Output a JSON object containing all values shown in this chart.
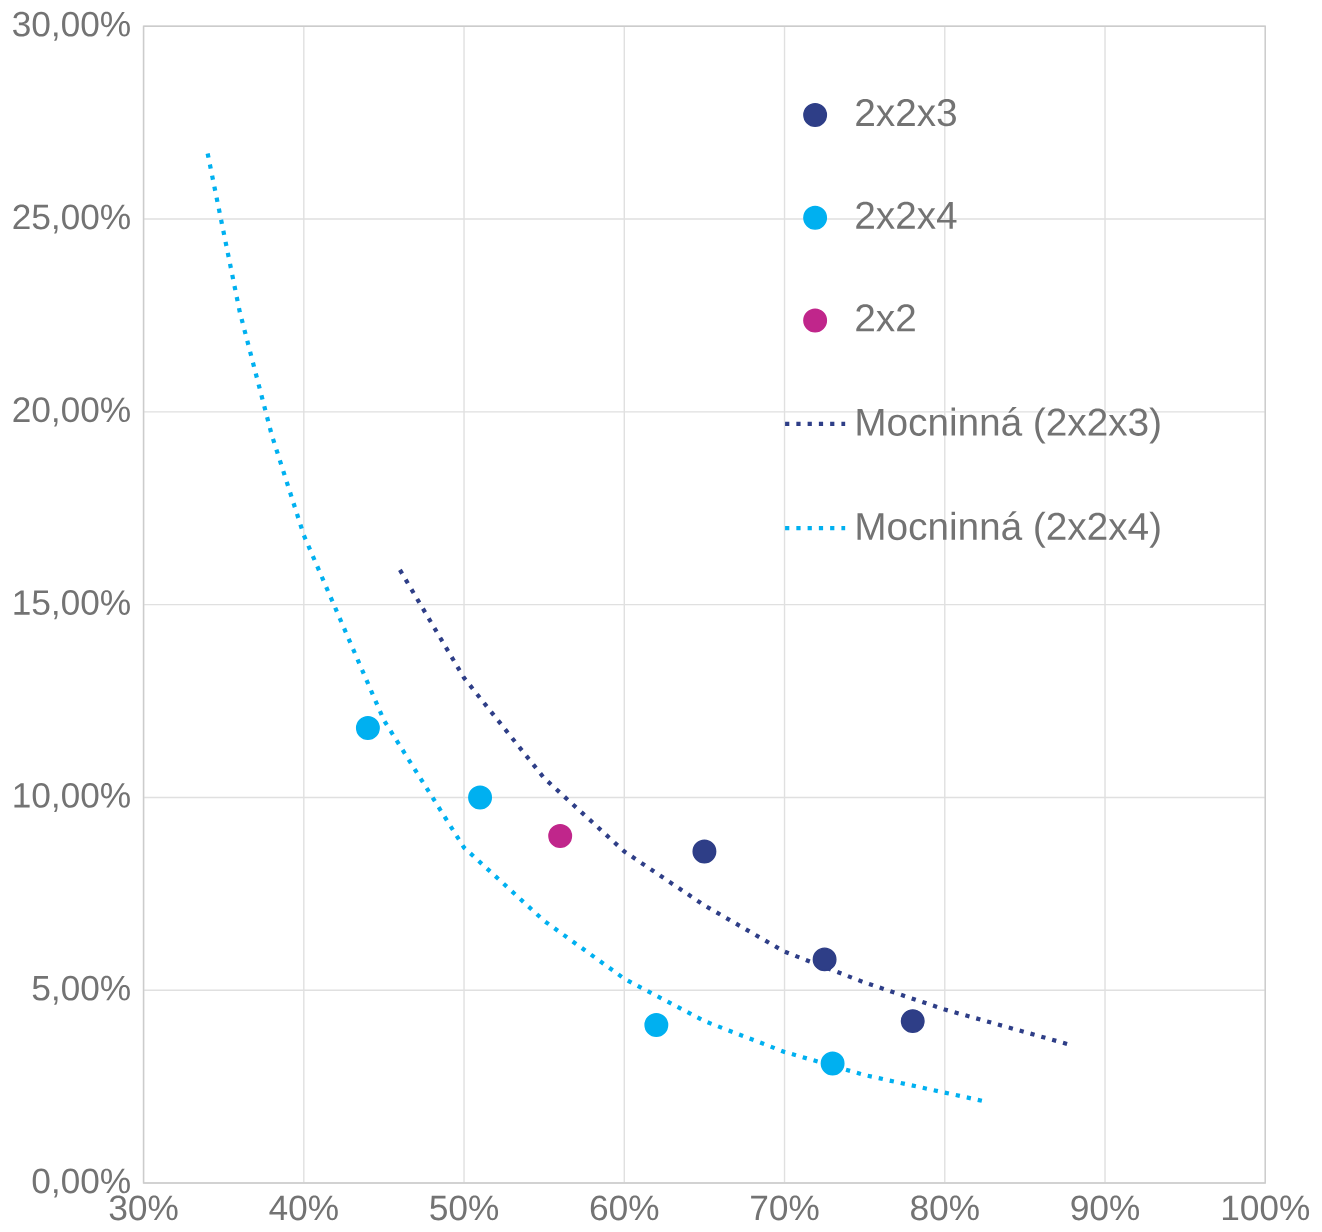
{
  "chart_data": {
    "type": "scatter",
    "xlim": [
      30,
      100
    ],
    "ylim": [
      0,
      30
    ],
    "xticks": [
      {
        "value": 30,
        "label": "30%"
      },
      {
        "value": 40,
        "label": "40%"
      },
      {
        "value": 50,
        "label": "50%"
      },
      {
        "value": 60,
        "label": "60%"
      },
      {
        "value": 70,
        "label": "70%"
      },
      {
        "value": 80,
        "label": "80%"
      },
      {
        "value": 90,
        "label": "90%"
      },
      {
        "value": 100,
        "label": "100%"
      }
    ],
    "yticks": [
      {
        "value": 0,
        "label": "0,00%"
      },
      {
        "value": 5,
        "label": "5,00%"
      },
      {
        "value": 10,
        "label": "10,00%"
      },
      {
        "value": 15,
        "label": "15,00%"
      },
      {
        "value": 20,
        "label": "20,00%"
      },
      {
        "value": 25,
        "label": "25,00%"
      },
      {
        "value": 30,
        "label": "30,00%"
      }
    ],
    "grid": true,
    "legend": "top right",
    "series": [
      {
        "name": "2x2x3",
        "color": "#2e3e87",
        "marker": "circle",
        "x": [
          65,
          72.5,
          78
        ],
        "values": [
          8.6,
          5.8,
          4.2
        ]
      },
      {
        "name": "2x2x4",
        "color": "#00b0f0",
        "marker": "circle",
        "x": [
          44,
          51,
          62,
          73
        ],
        "values": [
          11.8,
          10.0,
          4.1,
          3.1
        ]
      },
      {
        "name": "2x2",
        "color": "#c0268b",
        "marker": "circle",
        "x": [
          56
        ],
        "values": [
          9.0
        ]
      },
      {
        "name": "Mocninná (2x2x3)",
        "type": "line",
        "color": "#2e3e87",
        "marker": "none",
        "line_style": "dotted",
        "x": [
          46,
          50,
          55,
          60,
          65,
          70,
          75,
          80,
          87.7
        ],
        "values": [
          15.9,
          13.1,
          10.5,
          8.6,
          7.2,
          6.0,
          5.2,
          4.5,
          3.6
        ]
      },
      {
        "name": "Mocninná (2x2x4)",
        "type": "line",
        "color": "#00b0f0",
        "marker": "none",
        "line_style": "dotted",
        "x": [
          34,
          36,
          38,
          40,
          45,
          50,
          55,
          60,
          65,
          70,
          75,
          82.7
        ],
        "values": [
          26.7,
          22.6,
          19.4,
          16.8,
          12.0,
          8.7,
          6.8,
          5.3,
          4.2,
          3.4,
          2.8,
          2.1
        ]
      }
    ]
  }
}
